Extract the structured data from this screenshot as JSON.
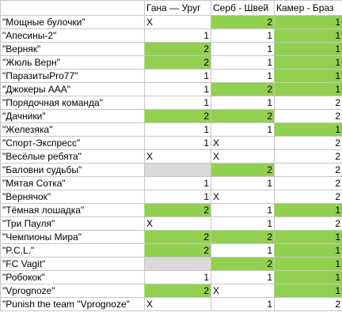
{
  "sheet": {
    "headers": [
      "",
      "Гана — Уруг",
      "Серб - Швей",
      "Камер - Браз"
    ],
    "colors": {
      "green": "#92d050",
      "grey": "#d9d9d9",
      "grid": "#c6c6c6"
    },
    "rows": [
      {
        "name": "\"Мощные булочки\"",
        "cells": [
          {
            "v": "X",
            "t": "x",
            "bg": ""
          },
          {
            "v": "2",
            "t": "num",
            "bg": "green"
          },
          {
            "v": "1",
            "t": "num",
            "bg": "green"
          }
        ]
      },
      {
        "name": "\"Апесины-2\"",
        "cells": [
          {
            "v": "1",
            "t": "num",
            "bg": ""
          },
          {
            "v": "1",
            "t": "num",
            "bg": ""
          },
          {
            "v": "1",
            "t": "num",
            "bg": "green"
          }
        ]
      },
      {
        "name": "\"Верняк\"",
        "cells": [
          {
            "v": "2",
            "t": "num",
            "bg": "green"
          },
          {
            "v": "1",
            "t": "num",
            "bg": ""
          },
          {
            "v": "1",
            "t": "num",
            "bg": "green"
          }
        ]
      },
      {
        "name": "\"Жюль Верн\"",
        "cells": [
          {
            "v": "2",
            "t": "num",
            "bg": "green"
          },
          {
            "v": "1",
            "t": "num",
            "bg": ""
          },
          {
            "v": "1",
            "t": "num",
            "bg": "green"
          }
        ]
      },
      {
        "name": "\"ПаразитыPro77\"",
        "cells": [
          {
            "v": "1",
            "t": "num",
            "bg": ""
          },
          {
            "v": "1",
            "t": "num",
            "bg": ""
          },
          {
            "v": "1",
            "t": "num",
            "bg": "green"
          }
        ]
      },
      {
        "name": "\"Джокеры ААА\"",
        "cells": [
          {
            "v": "1",
            "t": "num",
            "bg": ""
          },
          {
            "v": "2",
            "t": "num",
            "bg": "green"
          },
          {
            "v": "1",
            "t": "num",
            "bg": "green"
          }
        ]
      },
      {
        "name": "\"Порядочная команда\"",
        "cells": [
          {
            "v": "1",
            "t": "num",
            "bg": ""
          },
          {
            "v": "1",
            "t": "num",
            "bg": ""
          },
          {
            "v": "2",
            "t": "num",
            "bg": ""
          }
        ]
      },
      {
        "name": "\"Дачники\"",
        "cells": [
          {
            "v": "2",
            "t": "num",
            "bg": "green"
          },
          {
            "v": "2",
            "t": "num",
            "bg": "green"
          },
          {
            "v": "2",
            "t": "num",
            "bg": ""
          }
        ]
      },
      {
        "name": "\"Железяка\"",
        "cells": [
          {
            "v": "1",
            "t": "num",
            "bg": ""
          },
          {
            "v": "1",
            "t": "num",
            "bg": ""
          },
          {
            "v": "1",
            "t": "num",
            "bg": "green"
          }
        ]
      },
      {
        "name": "\"Спорт-Экспресс\"",
        "cells": [
          {
            "v": "1",
            "t": "num",
            "bg": ""
          },
          {
            "v": "X",
            "t": "x",
            "bg": ""
          },
          {
            "v": "2",
            "t": "num",
            "bg": ""
          }
        ]
      },
      {
        "name": "\"Весёлые ребята\"",
        "cells": [
          {
            "v": "X",
            "t": "x",
            "bg": ""
          },
          {
            "v": "X",
            "t": "x",
            "bg": ""
          },
          {
            "v": "2",
            "t": "num",
            "bg": ""
          }
        ]
      },
      {
        "name": "\"Баловни судьбы\"",
        "cells": [
          {
            "v": "",
            "t": "num",
            "bg": "grey"
          },
          {
            "v": "2",
            "t": "num",
            "bg": "green"
          },
          {
            "v": "2",
            "t": "num",
            "bg": ""
          }
        ]
      },
      {
        "name": "\"Мятая Сотка\"",
        "cells": [
          {
            "v": "1",
            "t": "num",
            "bg": ""
          },
          {
            "v": "1",
            "t": "num",
            "bg": ""
          },
          {
            "v": "2",
            "t": "num",
            "bg": ""
          }
        ]
      },
      {
        "name": "\"Вернячок\"",
        "cells": [
          {
            "v": "1",
            "t": "num",
            "bg": ""
          },
          {
            "v": "X",
            "t": "x",
            "bg": ""
          },
          {
            "v": "2",
            "t": "num",
            "bg": ""
          }
        ]
      },
      {
        "name": "\"Тёмная лошадка\"",
        "cells": [
          {
            "v": "2",
            "t": "num",
            "bg": "green"
          },
          {
            "v": "1",
            "t": "num",
            "bg": ""
          },
          {
            "v": "1",
            "t": "num",
            "bg": "green"
          }
        ]
      },
      {
        "name": "\"Три Пауля\"",
        "cells": [
          {
            "v": "X",
            "t": "x",
            "bg": ""
          },
          {
            "v": "1",
            "t": "num",
            "bg": ""
          },
          {
            "v": "2",
            "t": "num",
            "bg": ""
          }
        ]
      },
      {
        "name": "\"Чемпионы Мира\"",
        "cells": [
          {
            "v": "2",
            "t": "num",
            "bg": "green"
          },
          {
            "v": "2",
            "t": "num",
            "bg": "green"
          },
          {
            "v": "1",
            "t": "num",
            "bg": "green"
          }
        ]
      },
      {
        "name": "\"P.C.L.\"",
        "cells": [
          {
            "v": "2",
            "t": "num",
            "bg": "green"
          },
          {
            "v": "1",
            "t": "num",
            "bg": ""
          },
          {
            "v": "1",
            "t": "num",
            "bg": "green"
          }
        ]
      },
      {
        "name": "\"FC Vagit\"",
        "cells": [
          {
            "v": "",
            "t": "num",
            "bg": "grey"
          },
          {
            "v": "2",
            "t": "num",
            "bg": "green"
          },
          {
            "v": "1",
            "t": "num",
            "bg": "green"
          }
        ]
      },
      {
        "name": "\"Робокок\"",
        "cells": [
          {
            "v": "1",
            "t": "num",
            "bg": ""
          },
          {
            "v": "1",
            "t": "num",
            "bg": ""
          },
          {
            "v": "1",
            "t": "num",
            "bg": "green"
          }
        ]
      },
      {
        "name": "\"Vprognoze\"",
        "cells": [
          {
            "v": "2",
            "t": "num",
            "bg": "green"
          },
          {
            "v": "X",
            "t": "x",
            "bg": ""
          },
          {
            "v": "1",
            "t": "num",
            "bg": "green"
          }
        ]
      },
      {
        "name": "\"Punish the team \"Vprognoze\"",
        "cells": [
          {
            "v": "X",
            "t": "x",
            "bg": ""
          },
          {
            "v": "1",
            "t": "num",
            "bg": ""
          },
          {
            "v": "2",
            "t": "num",
            "bg": ""
          }
        ]
      }
    ]
  }
}
